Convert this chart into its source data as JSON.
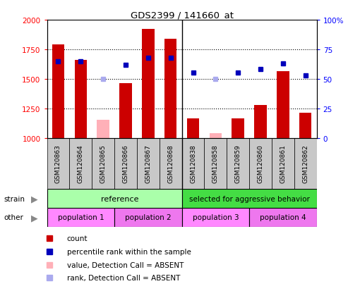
{
  "title": "GDS2399 / 141660_at",
  "samples": [
    "GSM120863",
    "GSM120864",
    "GSM120865",
    "GSM120866",
    "GSM120867",
    "GSM120868",
    "GSM120838",
    "GSM120858",
    "GSM120859",
    "GSM120860",
    "GSM120861",
    "GSM120862"
  ],
  "count_values": [
    1790,
    1660,
    null,
    1465,
    1920,
    1840,
    1165,
    null,
    1165,
    1280,
    1565,
    1210
  ],
  "absent_count_values": [
    null,
    null,
    1155,
    null,
    null,
    null,
    null,
    1040,
    null,
    null,
    null,
    null
  ],
  "rank_values": [
    65,
    65,
    null,
    62,
    68,
    68,
    55,
    null,
    55,
    58,
    63,
    53
  ],
  "absent_rank_values": [
    null,
    null,
    50,
    null,
    null,
    null,
    null,
    50,
    null,
    null,
    null,
    null
  ],
  "ylim_left": [
    1000,
    2000
  ],
  "ylim_right": [
    0,
    100
  ],
  "yticks_left": [
    1000,
    1250,
    1500,
    1750,
    2000
  ],
  "yticks_left_labels": [
    "1000",
    "1250",
    "1500",
    "1750",
    "2000"
  ],
  "yticks_right": [
    0,
    25,
    50,
    75,
    100
  ],
  "yticks_right_labels": [
    "0",
    "25",
    "50",
    "75",
    "100%"
  ],
  "count_color": "#cc0000",
  "absent_count_color": "#ffb0b8",
  "rank_color": "#0000bb",
  "absent_rank_color": "#aaaaee",
  "plot_bg_color": "#ffffff",
  "label_bg_color": "#c8c8c8",
  "strain_ref_color": "#aaffaa",
  "strain_agg_color": "#44dd44",
  "pop_color1": "#ff88ff",
  "pop_color2": "#ee77ee",
  "legend_items": [
    "count",
    "percentile rank within the sample",
    "value, Detection Call = ABSENT",
    "rank, Detection Call = ABSENT"
  ],
  "legend_colors": [
    "#cc0000",
    "#0000bb",
    "#ffb0b8",
    "#aaaaee"
  ],
  "strain_ref_label": "reference",
  "strain_agg_label": "selected for aggressive behavior",
  "n_ref": 6,
  "n_agg": 6
}
